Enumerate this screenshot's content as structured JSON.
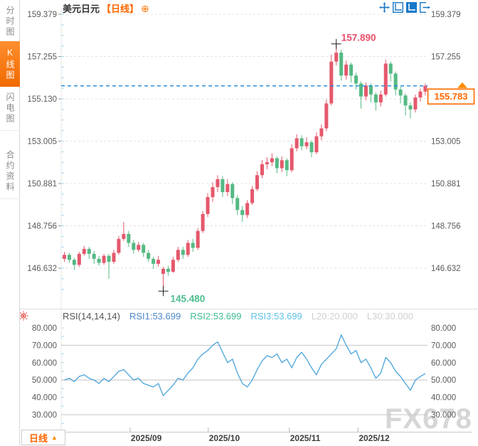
{
  "header": {
    "symbol": "美元日元",
    "period_tag": "【日线】",
    "add_icon": "⊕"
  },
  "toolbar": {
    "icons": [
      "pan",
      "fit-axes",
      "auto-scale",
      "exit-fullscreen"
    ]
  },
  "sidebar": {
    "items": [
      {
        "label": "分时图",
        "active": false
      },
      {
        "label": "K线图",
        "active": true
      },
      {
        "label": "闪电图",
        "active": false
      },
      {
        "label": "合约资料",
        "active": false
      }
    ]
  },
  "bottom_bar": {
    "period_label": "日线",
    "dropdown_arrow": "▲"
  },
  "watermark": "FX678",
  "chart_data": {
    "type": "candlestick+rsi",
    "title": "美元日元 日线",
    "colors": {
      "up": "#e5586c",
      "down": "#55b983",
      "grid": "#e3e3e3",
      "frame": "#c9c9c9",
      "rsi_line": "#4aa4d9",
      "price_line": "#1e86d8",
      "accent_orange": "#ff6600",
      "annotation_high": "#e8506a",
      "annotation_low": "#4dbd8e",
      "axis_text": "#5a5a5a",
      "date_text": "#3c3c3c",
      "minor_tick": "#aed6ee"
    },
    "price_axis": {
      "labels": [
        159.379,
        157.255,
        155.13,
        153.005,
        150.881,
        148.756,
        146.632
      ]
    },
    "x_ticks": [
      {
        "label": "2025/09",
        "index": 13.3
      },
      {
        "label": "2025/10",
        "index": 29.1
      },
      {
        "label": "2025/11",
        "index": 45.5
      },
      {
        "label": "2025/12",
        "index": 59.4
      }
    ],
    "current_price": 155.783,
    "current_price_label": "155.783",
    "annotations": {
      "high": {
        "label": "157.890",
        "value": 157.89,
        "index": 55
      },
      "low": {
        "label": "145.480",
        "value": 145.48,
        "index": 20
      }
    },
    "candles": [
      [
        147.1,
        147.45,
        146.95,
        147.3
      ],
      [
        147.3,
        147.4,
        146.9,
        147.05
      ],
      [
        147.05,
        147.15,
        146.55,
        146.8
      ],
      [
        146.8,
        147.45,
        146.7,
        147.35
      ],
      [
        147.35,
        147.75,
        147.25,
        147.6
      ],
      [
        147.6,
        147.7,
        147.1,
        147.35
      ],
      [
        147.35,
        147.5,
        146.85,
        147.1
      ],
      [
        147.1,
        147.25,
        146.75,
        146.9
      ],
      [
        146.9,
        147.35,
        146.8,
        147.25
      ],
      [
        147.25,
        147.35,
        146.1,
        146.95
      ],
      [
        146.95,
        147.55,
        146.85,
        147.4
      ],
      [
        147.4,
        148.25,
        147.3,
        148.1
      ],
      [
        148.1,
        148.95,
        148.0,
        148.35
      ],
      [
        148.35,
        148.5,
        147.7,
        147.9
      ],
      [
        147.9,
        148.05,
        147.35,
        147.55
      ],
      [
        147.55,
        147.95,
        147.45,
        147.8
      ],
      [
        147.8,
        147.9,
        147.2,
        147.4
      ],
      [
        147.4,
        147.55,
        146.95,
        147.1
      ],
      [
        147.1,
        147.2,
        146.6,
        146.85
      ],
      [
        146.85,
        147.25,
        146.7,
        147.05
      ],
      [
        146.35,
        146.7,
        145.48,
        146.6
      ],
      [
        146.6,
        146.75,
        146.25,
        146.45
      ],
      [
        146.45,
        147.2,
        146.4,
        147.05
      ],
      [
        147.05,
        147.7,
        146.95,
        147.55
      ],
      [
        147.55,
        147.7,
        147.1,
        147.3
      ],
      [
        147.3,
        148.05,
        147.2,
        147.9
      ],
      [
        147.9,
        148.1,
        147.45,
        147.65
      ],
      [
        147.65,
        148.65,
        147.55,
        148.5
      ],
      [
        148.5,
        149.5,
        148.4,
        149.35
      ],
      [
        149.35,
        150.4,
        149.2,
        150.2
      ],
      [
        150.2,
        150.95,
        149.95,
        150.7
      ],
      [
        150.7,
        151.3,
        150.45,
        151.1
      ],
      [
        151.1,
        151.25,
        150.2,
        150.45
      ],
      [
        150.45,
        151.1,
        150.25,
        150.85
      ],
      [
        150.85,
        150.95,
        149.85,
        150.15
      ],
      [
        150.15,
        150.3,
        149.3,
        149.55
      ],
      [
        149.55,
        149.75,
        148.95,
        149.3
      ],
      [
        149.3,
        150.05,
        149.15,
        149.9
      ],
      [
        149.9,
        150.75,
        149.8,
        150.6
      ],
      [
        150.6,
        151.5,
        150.5,
        151.3
      ],
      [
        151.3,
        152.05,
        151.15,
        151.85
      ],
      [
        151.85,
        152.2,
        151.6,
        151.95
      ],
      [
        151.95,
        152.4,
        151.75,
        152.15
      ],
      [
        152.15,
        152.25,
        151.4,
        151.65
      ],
      [
        151.65,
        152.25,
        151.45,
        152.05
      ],
      [
        152.05,
        152.15,
        151.25,
        151.55
      ],
      [
        151.55,
        152.85,
        151.45,
        152.65
      ],
      [
        152.65,
        153.35,
        152.5,
        153.15
      ],
      [
        153.15,
        153.3,
        152.55,
        152.75
      ],
      [
        152.75,
        153.2,
        152.6,
        152.95
      ],
      [
        152.95,
        153.05,
        152.2,
        152.45
      ],
      [
        152.45,
        153.45,
        152.35,
        153.25
      ],
      [
        153.25,
        153.85,
        153.05,
        153.65
      ],
      [
        153.65,
        155.1,
        153.5,
        154.9
      ],
      [
        154.9,
        157.35,
        154.8,
        157.0
      ],
      [
        157.0,
        157.89,
        156.8,
        157.45
      ],
      [
        157.45,
        157.6,
        156.05,
        156.3
      ],
      [
        156.3,
        157.05,
        156.1,
        156.85
      ],
      [
        156.85,
        156.95,
        155.95,
        156.3
      ],
      [
        156.3,
        156.45,
        155.6,
        155.9
      ],
      [
        155.9,
        156.0,
        154.65,
        155.25
      ],
      [
        155.25,
        155.95,
        155.05,
        155.8
      ],
      [
        155.8,
        155.9,
        154.95,
        155.35
      ],
      [
        155.35,
        155.45,
        154.55,
        154.95
      ],
      [
        154.95,
        155.55,
        154.75,
        155.35
      ],
      [
        155.35,
        157.1,
        155.25,
        156.9
      ],
      [
        156.9,
        157.0,
        156.0,
        156.4
      ],
      [
        156.4,
        156.5,
        155.3,
        155.6
      ],
      [
        155.6,
        155.75,
        154.9,
        155.3
      ],
      [
        155.3,
        155.4,
        154.3,
        154.8
      ],
      [
        154.8,
        154.95,
        154.15,
        154.6
      ],
      [
        154.6,
        155.35,
        154.45,
        155.2
      ],
      [
        155.2,
        155.65,
        155.0,
        155.5
      ],
      [
        155.5,
        155.9,
        155.3,
        155.78
      ]
    ],
    "rsi": {
      "params": "RSI(14,14,14)",
      "legend": [
        {
          "text": "RSI1:53.699",
          "color": "#4a86c8"
        },
        {
          "text": "RSI2:53.699",
          "color": "#3fbd8f"
        },
        {
          "text": "RSI3:53.699",
          "color": "#5fc3e8"
        },
        {
          "text": "L20:20.000",
          "color": "#cfcfcf"
        },
        {
          "text": "L30:30.000",
          "color": "#cfcfcf"
        }
      ],
      "axis_labels": [
        80,
        70,
        60,
        50,
        40,
        30
      ],
      "gridlines": [
        70,
        50,
        30
      ],
      "values": [
        50,
        51,
        49,
        52,
        53,
        51,
        50,
        48,
        51,
        49,
        52,
        55,
        56,
        53,
        50,
        51,
        48,
        47,
        46,
        48,
        41,
        44,
        47,
        51,
        50,
        54,
        57,
        62,
        65,
        67,
        70,
        72,
        66,
        60,
        62,
        54,
        48,
        46,
        50,
        56,
        61,
        64,
        63,
        65,
        60,
        62,
        57,
        63,
        66,
        62,
        57,
        53,
        59,
        62,
        65,
        68,
        76,
        70,
        65,
        67,
        60,
        62,
        57,
        51,
        54,
        63,
        60,
        55,
        52,
        48,
        44,
        50,
        52,
        53.7
      ]
    }
  }
}
